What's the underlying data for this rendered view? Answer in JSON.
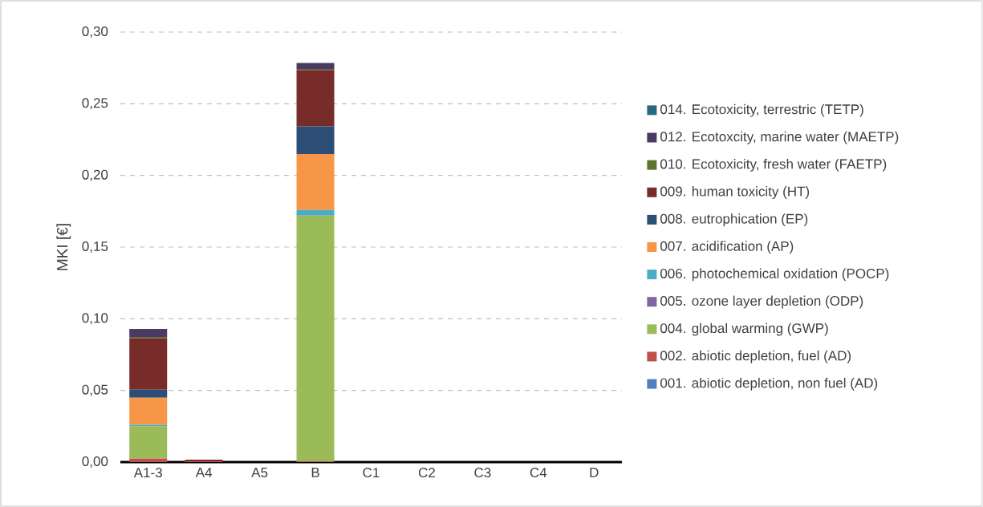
{
  "chart_data": {
    "type": "bar",
    "stacked": true,
    "ylabel": "MKI [€]",
    "categories": [
      "A1-3",
      "A4",
      "A5",
      "B",
      "C1",
      "C2",
      "C3",
      "C4",
      "D"
    ],
    "ylim": [
      0,
      0.3
    ],
    "yticks": [
      {
        "value": 0,
        "label": "0,00"
      },
      {
        "value": 0.05,
        "label": "0,05"
      },
      {
        "value": 0.1,
        "label": "0,10"
      },
      {
        "value": 0.15,
        "label": "0,15"
      },
      {
        "value": 0.2,
        "label": "0,20"
      },
      {
        "value": 0.25,
        "label": "0,25"
      },
      {
        "value": 0.3,
        "label": "0,30"
      }
    ],
    "grid": "y",
    "legend": "right",
    "series": [
      {
        "name": "001. abiotic depletion, non fuel (AD)",
        "color": "#4f81bd",
        "values": [
          0,
          0,
          0,
          0,
          0,
          0,
          0,
          0,
          0
        ]
      },
      {
        "name": "002. abiotic depletion, fuel (AD)",
        "color": "#c0504d",
        "values": [
          0.0024,
          0.0005,
          0,
          0.0006,
          0,
          0,
          0,
          0,
          0
        ]
      },
      {
        "name": "004. global warming (GWP)",
        "color": "#9bbb59",
        "values": [
          0.0226,
          0,
          0,
          0.1714,
          0,
          0,
          0,
          0,
          0
        ]
      },
      {
        "name": "005. ozone layer depletion (ODP)",
        "color": "#8064a2",
        "values": [
          0,
          0,
          0,
          0,
          0,
          0,
          0,
          0,
          0
        ]
      },
      {
        "name": "006. photochemical oxidation (POCP)",
        "color": "#4bacc6",
        "values": [
          0.001,
          0,
          0,
          0.0039,
          0,
          0,
          0,
          0,
          0
        ]
      },
      {
        "name": "007. acidification (AP)",
        "color": "#f79646",
        "values": [
          0.0189,
          0,
          0,
          0.039,
          0,
          0,
          0,
          0,
          0
        ]
      },
      {
        "name": "008. eutrophication (EP)",
        "color": "#2c4d75",
        "values": [
          0.0056,
          0,
          0,
          0.0194,
          0,
          0,
          0,
          0,
          0
        ]
      },
      {
        "name": "009. human toxicity (HT)",
        "color": "#772c2a",
        "values": [
          0.036,
          0.0012,
          0,
          0.0392,
          0,
          0,
          0,
          0,
          0
        ]
      },
      {
        "name": "010. Ecotoxicity, fresh water (FAETP)",
        "color": "#5e7530",
        "values": [
          0.0008,
          0,
          0,
          0.0008,
          0,
          0,
          0,
          0,
          0
        ]
      },
      {
        "name": "012. Ecotoxcity, marine water (MAETP)",
        "color": "#4b3a63",
        "values": [
          0.0056,
          0,
          0,
          0.0041,
          0,
          0,
          0,
          0,
          0
        ]
      },
      {
        "name": "014. Ecotoxicity, terrestric (TETP)",
        "color": "#276a7c",
        "values": [
          0,
          0,
          0,
          0,
          0,
          0,
          0,
          0,
          0
        ]
      }
    ]
  }
}
